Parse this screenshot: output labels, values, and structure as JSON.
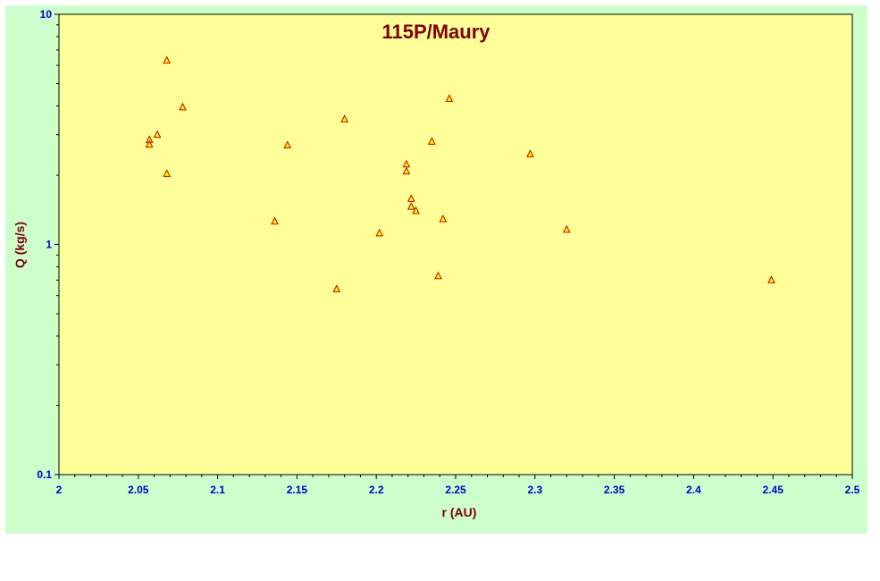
{
  "colors": {
    "chart_background": "#ccffcc",
    "plot_background": "#ffff99",
    "marker_fill": "#ffff00",
    "marker_stroke": "#cc0000",
    "title_color": "#800000",
    "tick_color": "#0000cc"
  },
  "chart_data": {
    "type": "scatter",
    "title": "115P/Maury",
    "xlabel": "r (AU)",
    "ylabel": "Q (kg/s)",
    "xlim": [
      2,
      2.5
    ],
    "ylim": [
      0.1,
      10
    ],
    "yscale": "log",
    "grid": false,
    "marker": "triangle",
    "x_ticks": [
      "2",
      "2.05",
      "2.1",
      "2.15",
      "2.2",
      "2.25",
      "2.3",
      "2.35",
      "2.4",
      "2.45",
      "2.5"
    ],
    "y_ticks": [
      "0.1",
      "1",
      "10"
    ],
    "series": [
      {
        "points": [
          {
            "x": 2.057,
            "y": 2.85
          },
          {
            "x": 2.057,
            "y": 2.72
          },
          {
            "x": 2.062,
            "y": 3.0
          },
          {
            "x": 2.068,
            "y": 6.3
          },
          {
            "x": 2.068,
            "y": 2.03
          },
          {
            "x": 2.078,
            "y": 3.95
          },
          {
            "x": 2.136,
            "y": 1.26
          },
          {
            "x": 2.144,
            "y": 2.7
          },
          {
            "x": 2.175,
            "y": 0.64
          },
          {
            "x": 2.18,
            "y": 3.5
          },
          {
            "x": 2.202,
            "y": 1.12
          },
          {
            "x": 2.219,
            "y": 2.23
          },
          {
            "x": 2.219,
            "y": 2.08
          },
          {
            "x": 2.222,
            "y": 1.58
          },
          {
            "x": 2.222,
            "y": 1.46
          },
          {
            "x": 2.225,
            "y": 1.4
          },
          {
            "x": 2.235,
            "y": 2.8
          },
          {
            "x": 2.239,
            "y": 0.73
          },
          {
            "x": 2.242,
            "y": 1.29
          },
          {
            "x": 2.246,
            "y": 4.3
          },
          {
            "x": 2.297,
            "y": 2.47
          },
          {
            "x": 2.32,
            "y": 1.16
          },
          {
            "x": 2.449,
            "y": 0.7
          }
        ]
      }
    ]
  }
}
